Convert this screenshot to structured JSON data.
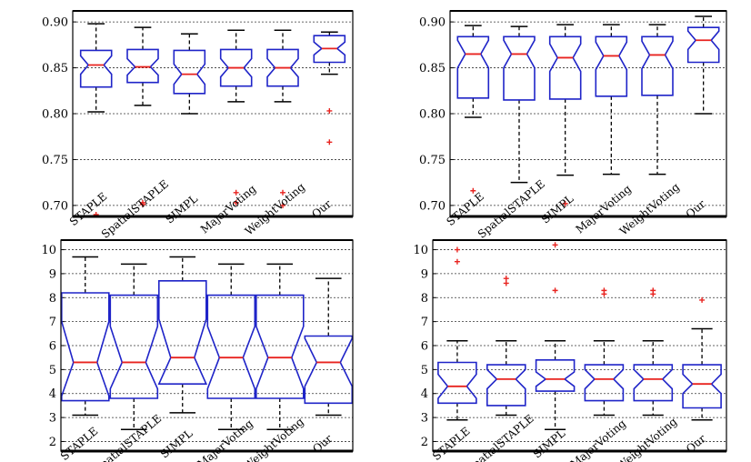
{
  "colors": {
    "box": "#1f24c8",
    "median": "#e8231f",
    "whisker": "#000000",
    "outlier": "#e8231f",
    "grid": "#333333",
    "frame": "#000000"
  },
  "chart_data": [
    {
      "type": "boxplot",
      "notched": true,
      "grid": "horizontal dashed",
      "categories": [
        "STAPLE",
        "SpatialSTAPLE",
        "SIMPL",
        "MajorVoting",
        "WeightVoting",
        "Our"
      ],
      "yticks": [
        "0.70",
        "0.75",
        "0.80",
        "0.85",
        "0.90"
      ],
      "ytick_values": [
        0.7,
        0.75,
        0.8,
        0.85,
        0.9
      ],
      "ylim": [
        0.688,
        0.912
      ],
      "boxes": [
        {
          "whisker_low": 0.802,
          "q1": 0.829,
          "median": 0.853,
          "q3": 0.869,
          "whisker_high": 0.898,
          "notch_low": 0.843,
          "notch_high": 0.863,
          "outliers": [
            0.69
          ]
        },
        {
          "whisker_low": 0.809,
          "q1": 0.834,
          "median": 0.851,
          "q3": 0.87,
          "whisker_high": 0.894,
          "notch_low": 0.842,
          "notch_high": 0.86,
          "outliers": [
            0.701,
            0.703
          ]
        },
        {
          "whisker_low": 0.8,
          "q1": 0.822,
          "median": 0.843,
          "q3": 0.869,
          "whisker_high": 0.887,
          "notch_low": 0.832,
          "notch_high": 0.854,
          "outliers": []
        },
        {
          "whisker_low": 0.813,
          "q1": 0.83,
          "median": 0.85,
          "q3": 0.87,
          "whisker_high": 0.891,
          "notch_low": 0.84,
          "notch_high": 0.86,
          "outliers": [
            0.714,
            0.703
          ]
        },
        {
          "whisker_low": 0.813,
          "q1": 0.83,
          "median": 0.85,
          "q3": 0.87,
          "whisker_high": 0.891,
          "notch_low": 0.84,
          "notch_high": 0.86,
          "outliers": [
            0.714,
            0.7
          ]
        },
        {
          "whisker_low": 0.843,
          "q1": 0.856,
          "median": 0.871,
          "q3": 0.885,
          "whisker_high": 0.889,
          "notch_low": 0.864,
          "notch_high": 0.878,
          "outliers": [
            0.803,
            0.769
          ]
        }
      ]
    },
    {
      "type": "boxplot",
      "notched": true,
      "grid": "horizontal dashed",
      "categories": [
        "STAPLE",
        "SpatialSTAPLE",
        "SIMPL",
        "MajorVoting",
        "WeightVoting",
        "Our"
      ],
      "yticks": [
        "0.70",
        "0.75",
        "0.80",
        "0.85",
        "0.90"
      ],
      "ytick_values": [
        0.7,
        0.75,
        0.8,
        0.85,
        0.9
      ],
      "ylim": [
        0.688,
        0.912
      ],
      "boxes": [
        {
          "whisker_low": 0.796,
          "q1": 0.817,
          "median": 0.865,
          "q3": 0.884,
          "whisker_high": 0.896,
          "notch_low": 0.85,
          "notch_high": 0.88,
          "outliers": [
            0.716
          ]
        },
        {
          "whisker_low": 0.725,
          "q1": 0.815,
          "median": 0.865,
          "q3": 0.884,
          "whisker_high": 0.895,
          "notch_low": 0.85,
          "notch_high": 0.88,
          "outliers": []
        },
        {
          "whisker_low": 0.733,
          "q1": 0.816,
          "median": 0.861,
          "q3": 0.884,
          "whisker_high": 0.897,
          "notch_low": 0.846,
          "notch_high": 0.876,
          "outliers": [
            0.702
          ]
        },
        {
          "whisker_low": 0.734,
          "q1": 0.819,
          "median": 0.863,
          "q3": 0.884,
          "whisker_high": 0.897,
          "notch_low": 0.848,
          "notch_high": 0.878,
          "outliers": []
        },
        {
          "whisker_low": 0.734,
          "q1": 0.82,
          "median": 0.864,
          "q3": 0.884,
          "whisker_high": 0.897,
          "notch_low": 0.849,
          "notch_high": 0.879,
          "outliers": []
        },
        {
          "whisker_low": 0.8,
          "q1": 0.856,
          "median": 0.88,
          "q3": 0.894,
          "whisker_high": 0.906,
          "notch_low": 0.87,
          "notch_high": 0.89,
          "outliers": []
        }
      ]
    },
    {
      "type": "boxplot",
      "notched": true,
      "grid": "horizontal dashed",
      "categories": [
        "STAPLE",
        "SpatialSTAPLE",
        "SIMPL",
        "MajorVoting",
        "WeightVoting",
        "Our"
      ],
      "yticks": [
        "2",
        "3",
        "4",
        "5",
        "6",
        "7",
        "8",
        "9",
        "10"
      ],
      "ytick_values": [
        2,
        3,
        4,
        5,
        6,
        7,
        8,
        9,
        10
      ],
      "ylim": [
        1.6,
        10.4
      ],
      "boxes": [
        {
          "whisker_low": 3.1,
          "q1": 3.7,
          "median": 5.3,
          "q3": 8.2,
          "whisker_high": 9.7,
          "notch_low": 3.9,
          "notch_high": 7.0,
          "outliers": []
        },
        {
          "whisker_low": 2.5,
          "q1": 3.8,
          "median": 5.3,
          "q3": 8.1,
          "whisker_high": 9.4,
          "notch_low": 4.2,
          "notch_high": 6.8,
          "outliers": []
        },
        {
          "whisker_low": 3.2,
          "q1": 4.4,
          "median": 5.5,
          "q3": 8.7,
          "whisker_high": 9.7,
          "notch_low": 4.4,
          "notch_high": 7.1,
          "outliers": []
        },
        {
          "whisker_low": 2.5,
          "q1": 3.8,
          "median": 5.5,
          "q3": 8.1,
          "whisker_high": 9.4,
          "notch_low": 4.2,
          "notch_high": 6.8,
          "outliers": []
        },
        {
          "whisker_low": 2.5,
          "q1": 3.8,
          "median": 5.5,
          "q3": 8.1,
          "whisker_high": 9.4,
          "notch_low": 4.2,
          "notch_high": 6.8,
          "outliers": []
        },
        {
          "whisker_low": 3.1,
          "q1": 3.6,
          "median": 5.3,
          "q3": 6.4,
          "whisker_high": 8.8,
          "notch_low": 4.3,
          "notch_high": 6.3,
          "outliers": []
        }
      ]
    },
    {
      "type": "boxplot",
      "notched": true,
      "grid": "horizontal dashed",
      "categories": [
        "STAPLE",
        "SpatialSTAPLE",
        "SIMPL",
        "MajorVoting",
        "WeightVoting",
        "Our"
      ],
      "yticks": [
        "2",
        "3",
        "4",
        "5",
        "6",
        "7",
        "8",
        "9",
        "10"
      ],
      "ytick_values": [
        2,
        3,
        4,
        5,
        6,
        7,
        8,
        9,
        10
      ],
      "ylim": [
        1.6,
        10.4
      ],
      "boxes": [
        {
          "whisker_low": 2.9,
          "q1": 3.6,
          "median": 4.3,
          "q3": 5.3,
          "whisker_high": 6.2,
          "notch_low": 3.8,
          "notch_high": 4.8,
          "outliers": [
            10.0,
            9.5
          ]
        },
        {
          "whisker_low": 3.1,
          "q1": 3.5,
          "median": 4.6,
          "q3": 5.2,
          "whisker_high": 6.2,
          "notch_low": 4.2,
          "notch_high": 5.0,
          "outliers": [
            8.8,
            8.6
          ]
        },
        {
          "whisker_low": 2.5,
          "q1": 4.1,
          "median": 4.6,
          "q3": 5.4,
          "whisker_high": 6.2,
          "notch_low": 4.3,
          "notch_high": 4.9,
          "outliers": [
            10.2,
            8.3
          ]
        },
        {
          "whisker_low": 3.1,
          "q1": 3.7,
          "median": 4.6,
          "q3": 5.2,
          "whisker_high": 6.2,
          "notch_low": 4.2,
          "notch_high": 5.0,
          "outliers": [
            8.3,
            8.15
          ]
        },
        {
          "whisker_low": 3.1,
          "q1": 3.7,
          "median": 4.6,
          "q3": 5.2,
          "whisker_high": 6.2,
          "notch_low": 4.2,
          "notch_high": 5.0,
          "outliers": [
            8.3,
            8.15
          ]
        },
        {
          "whisker_low": 2.9,
          "q1": 3.4,
          "median": 4.4,
          "q3": 5.2,
          "whisker_high": 6.7,
          "notch_low": 4.0,
          "notch_high": 4.8,
          "outliers": [
            7.9
          ]
        }
      ]
    }
  ]
}
